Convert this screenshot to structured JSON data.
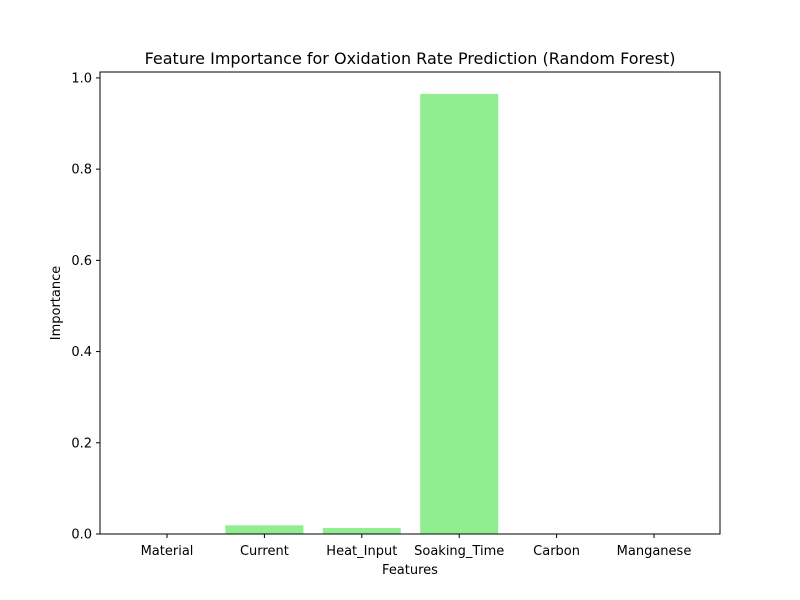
{
  "chart_data": {
    "type": "bar",
    "title": "Feature Importance for Oxidation Rate Prediction (Random Forest)",
    "xlabel": "Features",
    "ylabel": "Importance",
    "categories": [
      "Material",
      "Current",
      "Heat_Input",
      "Soaking_Time",
      "Carbon",
      "Manganese"
    ],
    "values": [
      0.0,
      0.019,
      0.013,
      0.965,
      0.0,
      0.0
    ],
    "ylim": [
      0.0,
      1.013
    ],
    "yticks": [
      "0.0",
      "0.2",
      "0.4",
      "0.6",
      "0.8",
      "1.0"
    ],
    "bar_color": "#90ee90",
    "grid": false
  }
}
